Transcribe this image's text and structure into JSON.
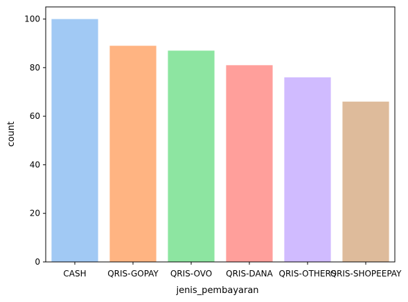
{
  "chart_data": {
    "type": "bar",
    "categories": [
      "CASH",
      "QRIS-GOPAY",
      "QRIS-OVO",
      "QRIS-DANA",
      "QRIS-OTHERS",
      "QRIS-SHOPEEPAY"
    ],
    "values": [
      100,
      89,
      87,
      81,
      76,
      66
    ],
    "colors": [
      "#a1c9f4",
      "#ffb482",
      "#8de5a1",
      "#ff9f9b",
      "#d0bbff",
      "#debb9b"
    ],
    "xlabel": "jenis_pembayaran",
    "ylabel": "count",
    "ylim": [
      0,
      105
    ],
    "yticks": [
      0,
      20,
      40,
      60,
      80,
      100
    ],
    "grid": false,
    "legend": "none"
  }
}
